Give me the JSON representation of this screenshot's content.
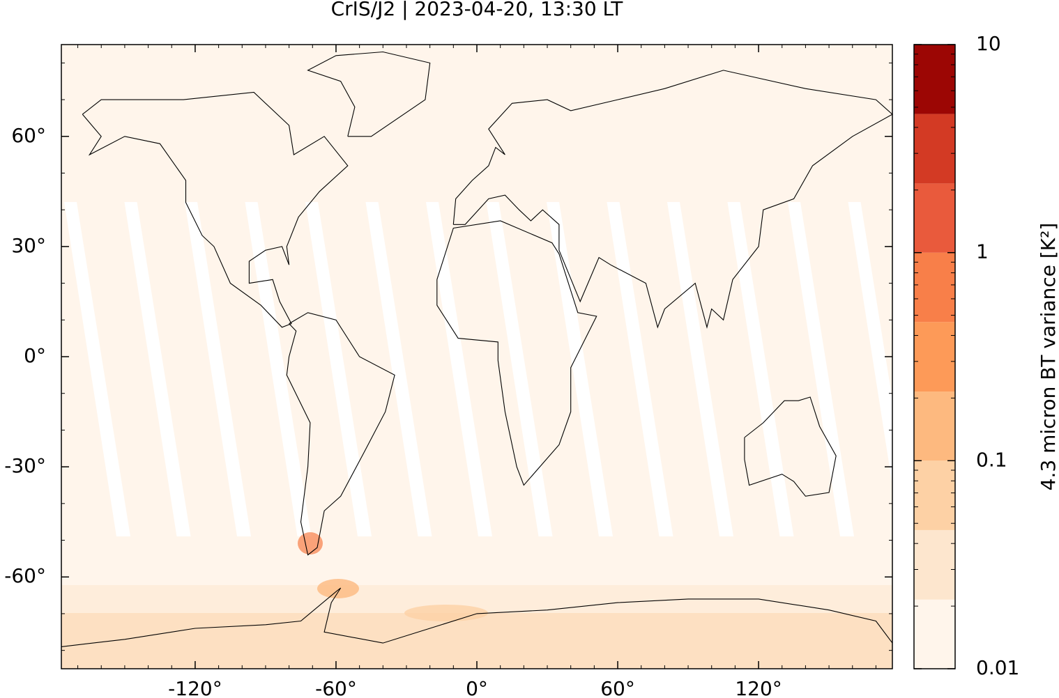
{
  "chart_data": {
    "type": "map",
    "title": "CrIS/J2 | 2023-04-20, 13:30 LT",
    "xlim": [
      -177,
      177
    ],
    "ylim": [
      -85,
      85
    ],
    "xticks": [
      {
        "value": -120,
        "label": "-120°"
      },
      {
        "value": -60,
        "label": "-60°"
      },
      {
        "value": 0,
        "label": "0°"
      },
      {
        "value": 60,
        "label": "60°"
      },
      {
        "value": 120,
        "label": "120°"
      }
    ],
    "yticks": [
      {
        "value": 60,
        "label": "60°"
      },
      {
        "value": 30,
        "label": "30°"
      },
      {
        "value": 0,
        "label": "0°"
      },
      {
        "value": -30,
        "label": "-30°"
      },
      {
        "value": -60,
        "label": "-60°"
      }
    ],
    "colorbar": {
      "label": "4.3 micron BT variance [K²]",
      "log_scale": true,
      "lim": [
        0.01,
        10
      ],
      "ticks": [
        0.01,
        0.1,
        1,
        10
      ],
      "levels": [
        0.01,
        0.0215,
        0.0464,
        0.1,
        0.215,
        0.464,
        1,
        2.15,
        4.64,
        10
      ],
      "colors": [
        "#fff5eb",
        "#fde6ce",
        "#fdd1a5",
        "#fdb97f",
        "#fd9a58",
        "#f87f49",
        "#e95a3c",
        "#d33a24",
        "#9c0604"
      ]
    }
  }
}
